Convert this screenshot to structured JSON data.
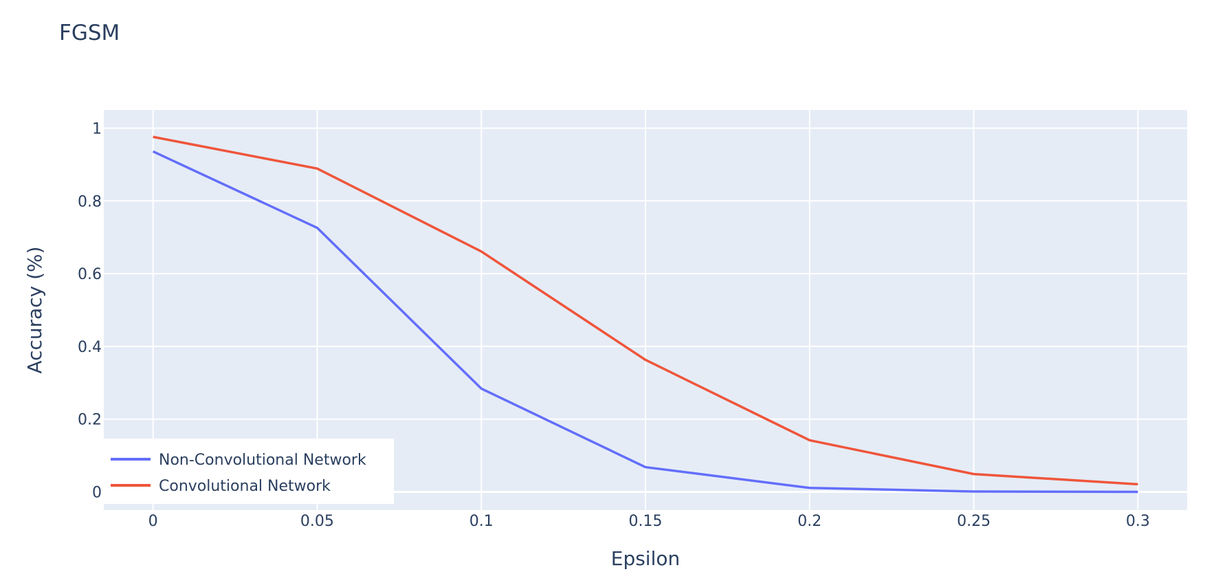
{
  "chart_data": {
    "type": "line",
    "title": "FGSM",
    "xlabel": "Epsilon",
    "ylabel": "Accuracy (%)",
    "x": [
      0,
      0.05,
      0.1,
      0.15,
      0.2,
      0.25,
      0.3
    ],
    "x_ticks": [
      "0",
      "0.05",
      "0.1",
      "0.15",
      "0.2",
      "0.25",
      "0.3"
    ],
    "y_ticks": [
      "0",
      "0.2",
      "0.4",
      "0.6",
      "0.8",
      "1"
    ],
    "xlim": [
      -0.015,
      0.315
    ],
    "ylim": [
      -0.05,
      1.05
    ],
    "grid": true,
    "legend_position": "bottom-left",
    "series": [
      {
        "name": "Non-Convolutional Network",
        "color": "#636efa",
        "values": [
          0.936,
          0.726,
          0.284,
          0.068,
          0.011,
          0.001,
          0.0
        ]
      },
      {
        "name": "Convolutional Network",
        "color": "#ef553b",
        "values": [
          0.976,
          0.889,
          0.661,
          0.363,
          0.142,
          0.049,
          0.021
        ]
      }
    ]
  }
}
